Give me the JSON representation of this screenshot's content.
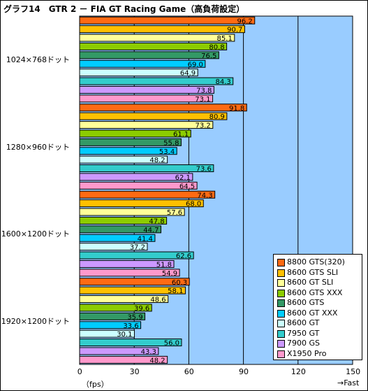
{
  "title": "グラフ14　GTR 2 － FIA GT Racing Game（高負荷設定）",
  "chart_data": {
    "type": "bar",
    "orientation": "horizontal",
    "xlim": [
      0,
      150
    ],
    "xticks": [
      "0",
      "30",
      "60",
      "90",
      "120",
      "150"
    ],
    "xunit": "（fps）",
    "xnote": "→Fast",
    "grid": true,
    "legend_position": "bottom-right",
    "categories": [
      "1024×768ドット",
      "1280×960ドット",
      "1600×1200ドット",
      "1920×1200ドット"
    ],
    "series": [
      {
        "name": "8800 GTS(320)",
        "color": "#ff6a13",
        "values": [
          96.2,
          91.8,
          74.3,
          60.3
        ]
      },
      {
        "name": "8600 GTS SLI",
        "color": "#ffc000",
        "values": [
          90.7,
          80.9,
          68.0,
          58.1
        ]
      },
      {
        "name": "8600 GT SLI",
        "color": "#ffff99",
        "values": [
          85.1,
          73.2,
          57.6,
          48.6
        ]
      },
      {
        "name": "8600 GTS XXX",
        "color": "#8ccc00",
        "values": [
          80.8,
          61.1,
          47.8,
          39.6
        ]
      },
      {
        "name": "8600 GTS",
        "color": "#339966",
        "values": [
          76.5,
          55.8,
          44.7,
          35.9
        ]
      },
      {
        "name": "8600 GT XXX",
        "color": "#00ccff",
        "values": [
          69.0,
          53.4,
          41.4,
          33.6
        ]
      },
      {
        "name": "8600 GT",
        "color": "#ccffff",
        "values": [
          64.9,
          48.2,
          37.2,
          30.1
        ]
      },
      {
        "name": "7950 GT",
        "color": "#33cccc",
        "values": [
          84.3,
          73.6,
          62.6,
          56.0
        ]
      },
      {
        "name": "7900 GS",
        "color": "#cc99ff",
        "values": [
          73.8,
          62.1,
          51.8,
          43.3
        ]
      },
      {
        "name": "X1950 Pro",
        "color": "#ff99cc",
        "values": [
          73.1,
          64.5,
          54.9,
          48.2
        ]
      }
    ],
    "plot_background": "#99ccff"
  }
}
